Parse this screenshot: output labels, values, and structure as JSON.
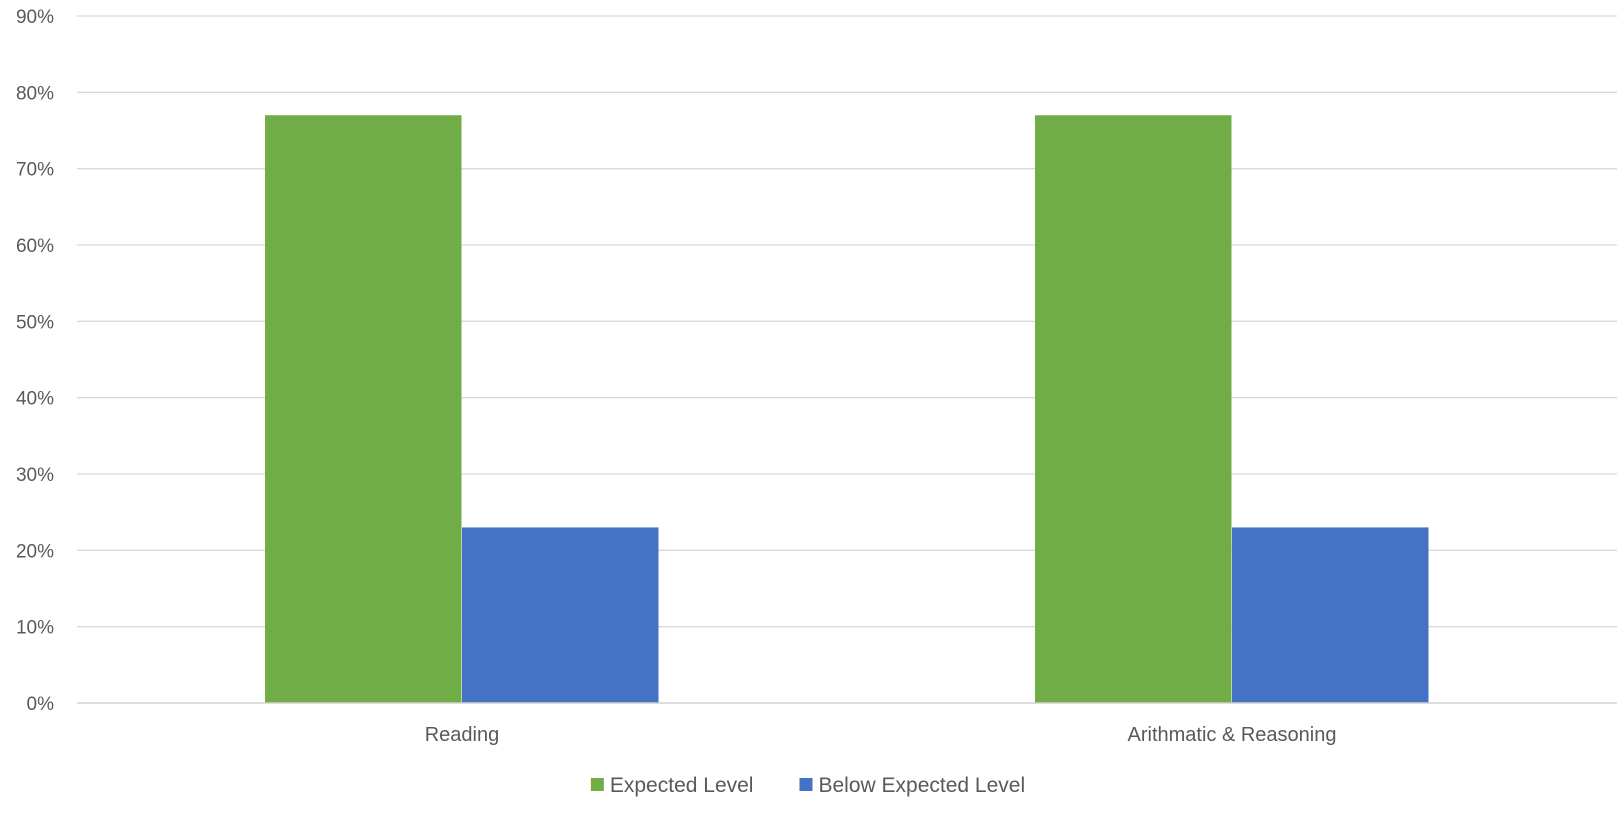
{
  "chart_data": {
    "type": "bar",
    "categories": [
      "Reading",
      "Arithmatic & Reasoning"
    ],
    "series": [
      {
        "name": "Expected Level",
        "values": [
          77,
          77
        ],
        "color": "#70ad47"
      },
      {
        "name": "Below Expected Level",
        "values": [
          23,
          23
        ],
        "color": "#4472c4"
      }
    ],
    "ylim": [
      0,
      90
    ],
    "ytick_step": 10,
    "ytick_suffix": "%",
    "grid": true,
    "legend": "bottom-center"
  }
}
